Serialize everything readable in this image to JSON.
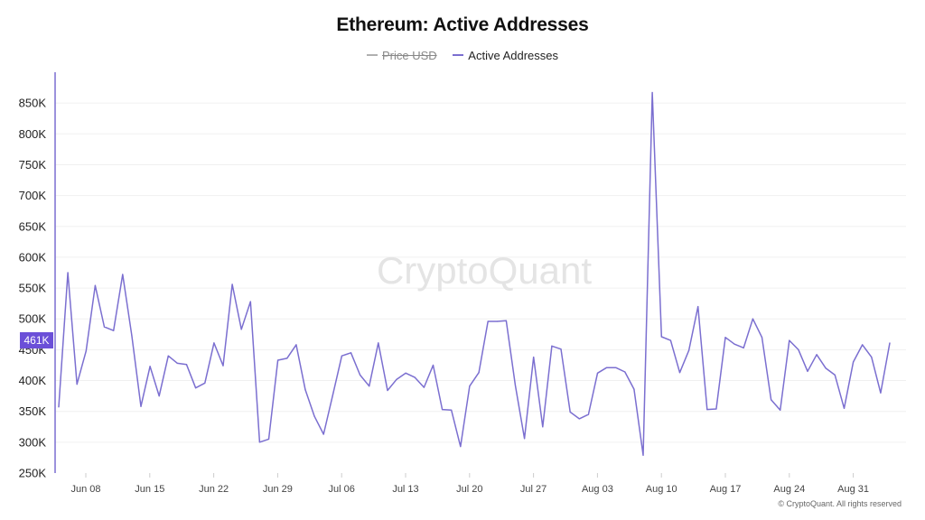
{
  "title": "Ethereum: Active Addresses",
  "legend": [
    {
      "label": "Price USD",
      "color": "#b0b0b0",
      "hidden": true
    },
    {
      "label": "Active Addresses",
      "color": "#7b6fd0",
      "hidden": false
    }
  ],
  "watermark": "CryptoQuant",
  "copyright": "© CryptoQuant. All rights reserved",
  "current_value_label": "461K",
  "colors": {
    "series": "#7b6fd0",
    "accent": "#6b4fd8",
    "grid": "#f0f0f0"
  },
  "chart_data": {
    "type": "line",
    "title": "Ethereum: Active Addresses",
    "ylim": [
      250000,
      900000
    ],
    "y_ticks": [
      {
        "value": 250000,
        "label": "250K"
      },
      {
        "value": 300000,
        "label": "300K"
      },
      {
        "value": 350000,
        "label": "350K"
      },
      {
        "value": 400000,
        "label": "400K"
      },
      {
        "value": 450000,
        "label": "450K"
      },
      {
        "value": 500000,
        "label": "500K"
      },
      {
        "value": 550000,
        "label": "550K"
      },
      {
        "value": 600000,
        "label": "600K"
      },
      {
        "value": 650000,
        "label": "650K"
      },
      {
        "value": 700000,
        "label": "700K"
      },
      {
        "value": 750000,
        "label": "750K"
      },
      {
        "value": 800000,
        "label": "800K"
      },
      {
        "value": 850000,
        "label": "850K"
      }
    ],
    "x_ticks": [
      "Jun 08",
      "Jun 15",
      "Jun 22",
      "Jun 29",
      "Jul 06",
      "Jul 13",
      "Jul 20",
      "Jul 27",
      "Aug 03",
      "Aug 10",
      "Aug 17",
      "Aug 24",
      "Aug 31"
    ],
    "grid": true,
    "legend_position": "top-center",
    "series": [
      {
        "name": "Active Addresses",
        "values": [
          357000,
          575000,
          394000,
          448000,
          554000,
          487000,
          481000,
          572000,
          473000,
          358000,
          423000,
          375000,
          440000,
          428000,
          426000,
          388000,
          396000,
          461000,
          424000,
          556000,
          483000,
          528000,
          300000,
          305000,
          433000,
          436000,
          458000,
          385000,
          342000,
          313000,
          376000,
          440000,
          445000,
          409000,
          391000,
          461000,
          384000,
          402000,
          412000,
          405000,
          389000,
          425000,
          353000,
          352000,
          293000,
          391000,
          413000,
          496000,
          496000,
          497000,
          392000,
          306000,
          438000,
          325000,
          456000,
          451000,
          349000,
          338000,
          345000,
          412000,
          421000,
          421000,
          414000,
          386000,
          279000,
          867000,
          471000,
          465000,
          413000,
          449000,
          520000,
          353000,
          354000,
          470000,
          459000,
          453000,
          500000,
          470000,
          369000,
          352000,
          465000,
          450000,
          415000,
          442000,
          420000,
          409000,
          355000,
          430000,
          458000,
          438000,
          380000,
          461000
        ]
      }
    ]
  }
}
